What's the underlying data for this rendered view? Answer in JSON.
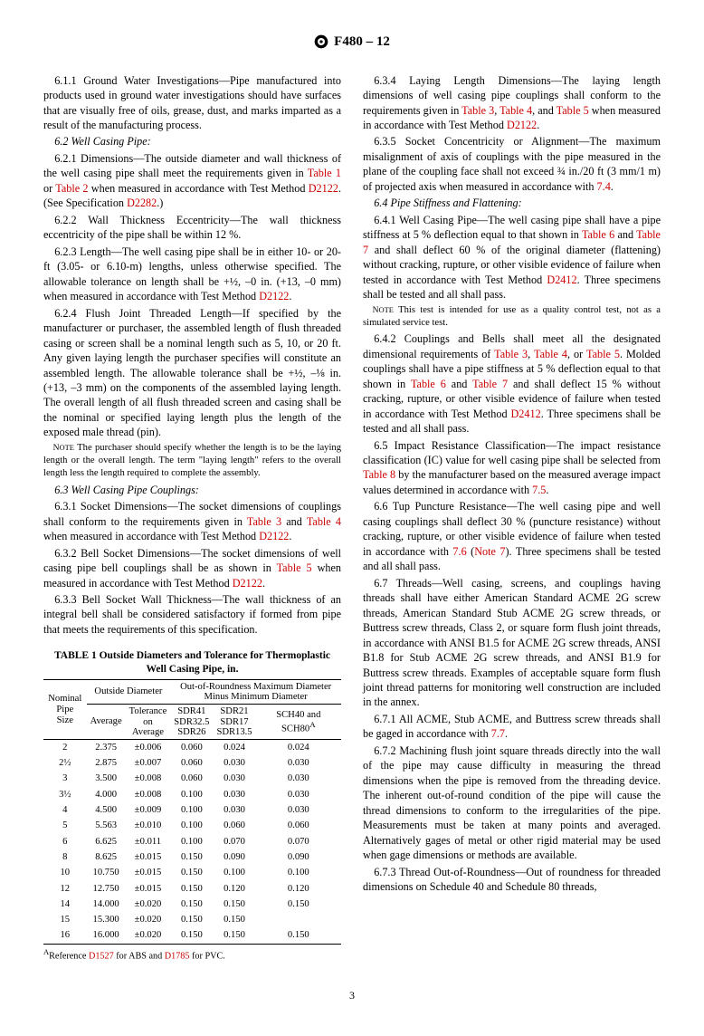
{
  "header": {
    "spec": "F480 – 12"
  },
  "left": {
    "p611": "6.1.1 Ground Water Investigations—Pipe manufactured into products used in ground water investigations should have surfaces that are visually free of oils, grease, dust, and marks imparted as a result of the manufacturing process.",
    "p62": "6.2 Well Casing Pipe:",
    "p621a": "6.2.1 Dimensions—The outside diameter and wall thickness of the well casing pipe shall meet the requirements given in ",
    "p621b": " or ",
    "p621c": " when measured in accordance with Test Method ",
    "p621d": ". (See Specification ",
    "p621e": ".)",
    "t1": "Table 1",
    "t2": "Table 2",
    "d2122": "D2122",
    "d2282": "D2282",
    "p622": "6.2.2 Wall Thickness Eccentricity—The wall thickness eccentricity of the pipe shall be within 12 %.",
    "p623a": "6.2.3 Length—The well casing pipe shall be in either 10- or 20-ft (3.05- or 6.10-m) lengths, unless otherwise specified. The allowable tolerance on length shall be +½, –0 in. (+13, –0 mm) when measured in accordance with Test Method ",
    "p623b": ".",
    "p624": "6.2.4 Flush Joint Threaded Length—If specified by the manufacturer or purchaser, the assembled length of flush threaded casing or screen shall be a nominal length such as 5, 10, or 20 ft. Any given laying length the purchaser specifies will constitute an assembled length. The allowable tolerance shall be +½, –⅛ in. (+13, –3 mm) on the components of the assembled laying length. The overall length of all flush threaded screen and casing shall be the nominal or specified laying length plus the length of the exposed male thread (pin).",
    "note4": "NOTE 4—The purchaser should specify whether the length is to be the laying length or the overall length. The term \"laying length\" refers to the overall length less the length required to complete the assembly.",
    "p63": "6.3 Well Casing Pipe Couplings:",
    "p631a": "6.3.1 Socket Dimensions—The socket dimensions of couplings shall conform to the requirements given in ",
    "p631b": " and ",
    "p631c": " when measured in accordance with Test Method ",
    "p631d": ".",
    "t3": "Table 3",
    "t4": "Table 4",
    "p632a": "6.3.2 Bell Socket Dimensions—The socket dimensions of well casing pipe bell couplings shall be as shown in ",
    "p632b": " when measured in accordance with Test Method ",
    "t5": "Table 5",
    "p633": "6.3.3 Bell Socket Wall Thickness—The wall thickness of an integral bell shall be considered satisfactory if formed from pipe that meets the requirements of this specification."
  },
  "table1": {
    "title": "TABLE 1 Outside Diameters and Tolerance for Thermoplastic Well Casing Pipe, in.",
    "h_nom": "Nominal Pipe Size",
    "h_od": "Outside Diameter",
    "h_oor": "Out-of-Roundness Maximum Diameter Minus Minimum Diameter",
    "h_avg": "Average",
    "h_tol": "Tolerance on Average",
    "h_c1": "SDR41 SDR32.5 SDR26",
    "h_c2": "SDR21 SDR17 SDR13.5",
    "h_c3": "SCH40 and SCH80",
    "sup": "A",
    "rows": [
      [
        "2",
        "2.375",
        "±0.006",
        "0.060",
        "0.024",
        "0.024"
      ],
      [
        "2½",
        "2.875",
        "±0.007",
        "0.060",
        "0.030",
        "0.030"
      ],
      [
        "3",
        "3.500",
        "±0.008",
        "0.060",
        "0.030",
        "0.030"
      ],
      [
        "3½",
        "4.000",
        "±0.008",
        "0.100",
        "0.030",
        "0.030"
      ],
      [
        "4",
        "4.500",
        "±0.009",
        "0.100",
        "0.030",
        "0.030"
      ],
      [
        "5",
        "5.563",
        "±0.010",
        "0.100",
        "0.060",
        "0.060"
      ],
      [
        "6",
        "6.625",
        "±0.011",
        "0.100",
        "0.070",
        "0.070"
      ],
      [
        "8",
        "8.625",
        "±0.015",
        "0.150",
        "0.090",
        "0.090"
      ],
      [
        "10",
        "10.750",
        "±0.015",
        "0.150",
        "0.100",
        "0.100"
      ],
      [
        "12",
        "12.750",
        "±0.015",
        "0.150",
        "0.120",
        "0.120"
      ],
      [
        "14",
        "14.000",
        "±0.020",
        "0.150",
        "0.150",
        "0.150"
      ],
      [
        "15",
        "15.300",
        "±0.020",
        "0.150",
        "0.150",
        ""
      ],
      [
        "16",
        "16.000",
        "±0.020",
        "0.150",
        "0.150",
        "0.150"
      ]
    ],
    "foot_a": "Reference ",
    "foot_b": " for ABS and ",
    "foot_c": " for PVC.",
    "d1527": "D1527",
    "d1785": "D1785"
  },
  "right": {
    "p634a": "6.3.4 Laying Length Dimensions—The laying length dimensions of well casing pipe couplings shall conform to the requirements given in ",
    "p634b": ", ",
    "p634c": ", and ",
    "p634d": " when measured in accordance with Test Method ",
    "p634e": ".",
    "p635a": "6.3.5 Socket Concentricity or Alignment—The maximum misalignment of axis of couplings with the pipe measured in the plane of the coupling face shall not exceed ¾ in./20 ft (3 mm/1 m) of projected axis when measured in accordance with ",
    "p635b": ".",
    "s74": "7.4",
    "p64": "6.4 Pipe Stiffness and Flattening:",
    "p641a": "6.4.1 Well Casing Pipe—The well casing pipe shall have a pipe stiffness at 5 % deflection equal to that shown in ",
    "p641b": " and ",
    "p641c": " and shall deflect 60 % of the original diameter (flattening) without cracking, rupture, or other visible evidence of failure when tested in accordance with Test Method ",
    "p641d": ". Three specimens shall be tested and all shall pass.",
    "t6": "Table 6",
    "t7": "Table 7",
    "d2412": "D2412",
    "note5": "NOTE 5—This test is intended for use as a quality control test, not as a simulated service test.",
    "p642a": "6.4.2 Couplings and Bells shall meet all the designated dimensional requirements of ",
    "p642b": ", ",
    "p642c": ", or ",
    "p642d": ". Molded couplings shall have a pipe stiffness at 5 % deflection equal to that shown in ",
    "p642e": " and ",
    "p642f": " and shall deflect 15 % without cracking, rupture, or other visible evidence of failure when tested in accordance with Test Method ",
    "p642g": ". Three specimens shall be tested and all shall pass.",
    "p65a": "6.5 Impact Resistance Classification—The impact resistance classification (IC) value for well casing pipe shall be selected from ",
    "p65b": " by the manufacturer based on the measured average impact values determined in accordance with ",
    "p65c": ".",
    "t8": "Table 8",
    "s75": "7.5",
    "p66a": "6.6 Tup Puncture Resistance—The well casing pipe and well casing couplings shall deflect 30 % (puncture resistance) without cracking, rupture, or other visible evidence of failure when tested in accordance with ",
    "p66b": " (",
    "p66c": "). Three specimens shall be tested and all shall pass.",
    "s76": "7.6",
    "n7": "Note 7",
    "p67": "6.7 Threads—Well casing, screens, and couplings having threads shall have either American Standard ACME 2G screw threads, American Standard Stub ACME 2G screw threads, or Buttress screw threads, Class 2, or square form flush joint threads, in accordance with ANSI B1.5 for ACME 2G screw threads, ANSI B1.8 for Stub ACME 2G screw threads, and ANSI B1.9 for Buttress screw threads. Examples of acceptable square form flush joint thread patterns for monitoring well construction are included in the annex.",
    "p671a": "6.7.1 All ACME, Stub ACME, and Buttress screw threads shall be gaged in accordance with ",
    "p671b": ".",
    "s77": "7.7",
    "p672": "6.7.2 Machining flush joint square threads directly into the wall of the pipe may cause difficulty in measuring the thread dimensions when the pipe is removed from the threading device. The inherent out-of-round condition of the pipe will cause the thread dimensions to conform to the irregularities of the pipe. Measurements must be taken at many points and averaged. Alternatively gages of metal or other rigid material may be used when gage dimensions or methods are available.",
    "p673": "6.7.3 Thread Out-of-Roundness—Out of roundness for threaded dimensions on Schedule 40 and Schedule 80 threads,"
  },
  "pagenum": "3"
}
